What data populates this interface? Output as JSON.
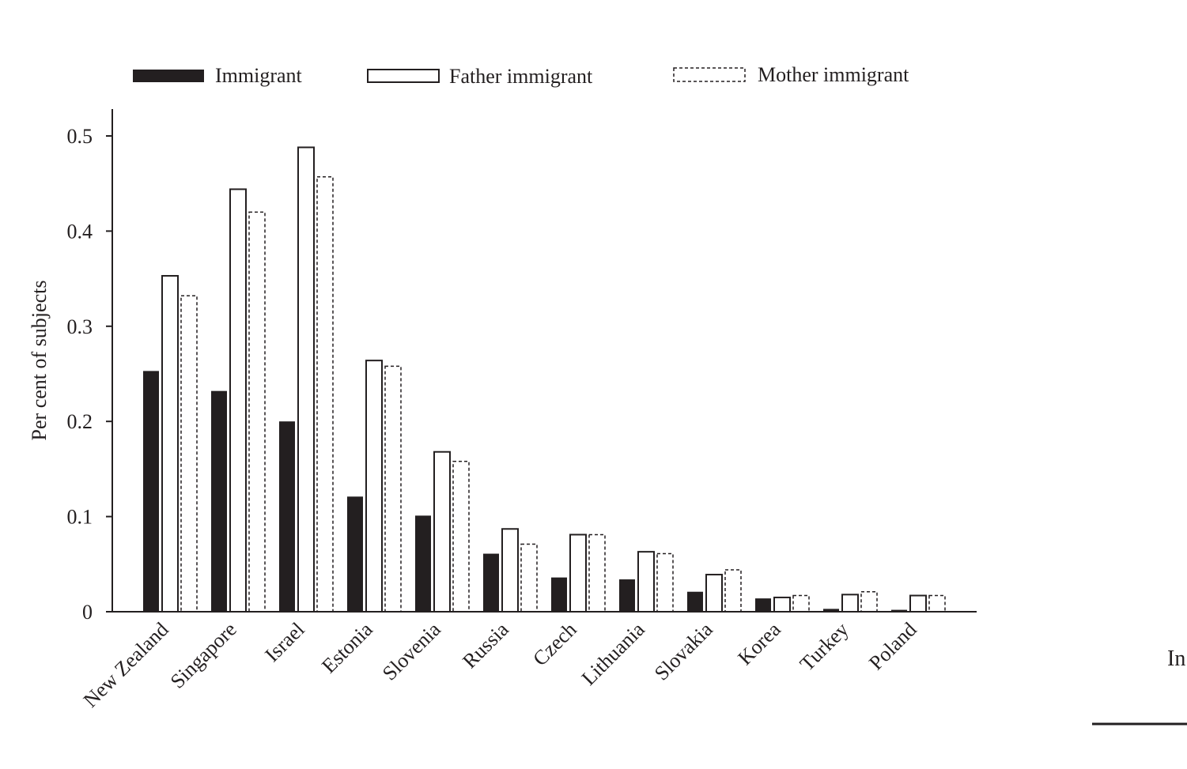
{
  "chart_data": {
    "type": "bar",
    "categories": [
      "New Zealand",
      "Singapore",
      "Israel",
      "Estonia",
      "Slovenia",
      "Russia",
      "Czech",
      "Lithuania",
      "Slovakia",
      "Korea",
      "Turkey",
      "Poland"
    ],
    "series": [
      {
        "name": "Immigrant",
        "style": "solid-fill",
        "color": "#231f20",
        "values": [
          0.253,
          0.232,
          0.2,
          0.121,
          0.101,
          0.061,
          0.036,
          0.034,
          0.021,
          0.014,
          0.003,
          0.002
        ]
      },
      {
        "name": "Father immigrant",
        "style": "solid-outline",
        "color": "#231f20",
        "values": [
          0.353,
          0.444,
          0.488,
          0.264,
          0.168,
          0.087,
          0.081,
          0.063,
          0.039,
          0.015,
          0.018,
          0.017
        ]
      },
      {
        "name": "Mother immigrant",
        "style": "dashed-outline",
        "color": "#231f20",
        "values": [
          0.332,
          0.42,
          0.457,
          0.258,
          0.158,
          0.071,
          0.081,
          0.061,
          0.044,
          0.017,
          0.021,
          0.017
        ]
      }
    ],
    "ylabel": "Per cent of subjects",
    "xlabel": "",
    "ylim": [
      0,
      0.5
    ],
    "yticks": [
      "0",
      "0.1",
      "0.2",
      "0.3",
      "0.4",
      "0.5"
    ],
    "ytick_values": [
      0,
      0.1,
      0.2,
      0.3,
      0.4,
      0.5
    ],
    "legend_position": "top",
    "grid": false
  },
  "edge_text": "In"
}
